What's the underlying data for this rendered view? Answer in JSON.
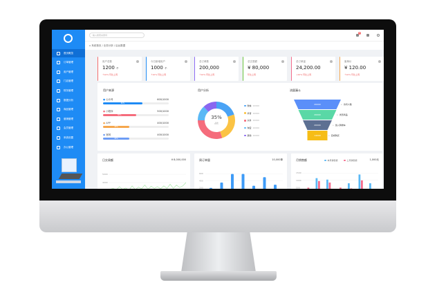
{
  "sidebar": {
    "items": [
      {
        "label": "首页概览",
        "icon": "home-icon"
      },
      {
        "label": "订单管理",
        "icon": "document-icon"
      },
      {
        "label": "用户管理",
        "icon": "user-icon"
      },
      {
        "label": "门店管理",
        "icon": "store-icon"
      },
      {
        "label": "财务管理",
        "icon": "wallet-icon"
      },
      {
        "label": "数据分析",
        "icon": "chart-icon"
      },
      {
        "label": "商品管理",
        "icon": "box-icon"
      },
      {
        "label": "营销管理",
        "icon": "gear-icon"
      },
      {
        "label": "会员管理",
        "icon": "bag-icon"
      },
      {
        "label": "系统设置",
        "icon": "monitor-icon"
      },
      {
        "label": "办公管理",
        "icon": "desktop-icon"
      }
    ],
    "active": 0
  },
  "header": {
    "search_placeholder": "输入搜索关键词",
    "notification_count": "6"
  },
  "breadcrumb": "系统首页 / 业务分析 / 后台数据",
  "stats": [
    {
      "title": "用户总数",
      "value": "1200",
      "unit": "个",
      "sub": "↑10% 环比上周",
      "color": "#f56c6c"
    },
    {
      "title": "今日新增用户",
      "value": "1000",
      "unit": "个",
      "sub": "↑10% 环比上周",
      "color": "#1e8bf5"
    },
    {
      "title": "总订单数",
      "value": "200,000",
      "unit": "",
      "sub": "↑10% 环比上周",
      "color": "#8e6cf5"
    },
    {
      "title": "总交易额",
      "value": "¥ 80,000",
      "unit": "",
      "sub": "环比上周",
      "color": "#67c23a"
    },
    {
      "title": "总订单量",
      "value": "24,200.00",
      "unit": "",
      "sub": "↓20% 环比上周",
      "color": "#f56c8c"
    },
    {
      "title": "客单价",
      "value": "¥ 120.00",
      "unit": "",
      "sub": "↑10% 环比上周",
      "color": "#f5a64c"
    }
  ],
  "progress": {
    "title": "用户来源",
    "items": [
      {
        "label": "公众号",
        "value": "600/1000",
        "pct": 60,
        "color": "#1e8bf5"
      },
      {
        "label": "小程序",
        "value": "500/1000",
        "pct": 50,
        "color": "#f56c7c"
      },
      {
        "label": "APP",
        "value": "400/1000",
        "pct": 40,
        "color": "#f5a64c"
      },
      {
        "label": "官网",
        "value": "400/1000",
        "pct": 40,
        "color": "#6c9cf5"
      }
    ]
  },
  "donut": {
    "title": "用户分析",
    "center": "35%",
    "center_sub": "占比",
    "items": [
      {
        "label": "微信",
        "value": "10000",
        "color": "#4aa3f5",
        "share": 20
      },
      {
        "label": "抖音",
        "value": "10000",
        "color": "#fbc344",
        "share": 25
      },
      {
        "label": "头条",
        "value": "10000",
        "color": "#f56c7c",
        "share": 30
      },
      {
        "label": "淘宝",
        "value": "10000",
        "color": "#5ab8f5",
        "share": 13
      },
      {
        "label": "其他",
        "value": "10000",
        "color": "#8a67f0",
        "share": 12
      }
    ]
  },
  "funnel": {
    "title": "流量漏斗",
    "items": [
      {
        "value": "20000",
        "label": "访问人数",
        "color": "#5b8ff9"
      },
      {
        "value": "20000",
        "label": "浏览商品",
        "color": "#5ad8a6"
      },
      {
        "value": "20000",
        "label": "加入购物车",
        "color": "#5d7092"
      },
      {
        "value": "14000",
        "label": "完成购买",
        "color": "#f6bd16"
      }
    ]
  },
  "chart_data": [
    {
      "type": "line",
      "title": "日交易额",
      "total": "¥ 8,000,000",
      "yticks": [
        "5000",
        "4000",
        "3000"
      ],
      "ylim": [
        2500,
        5500
      ],
      "values": [
        3200,
        3300,
        3150,
        3500,
        3200,
        3350,
        3100,
        3600,
        3150,
        3450,
        3250,
        3700,
        3200,
        3550,
        3300,
        3500,
        3250,
        3600,
        3300,
        3800,
        3300,
        3700,
        3400,
        3600,
        4000
      ],
      "color": "#9be39b"
    },
    {
      "type": "bar",
      "title": "周订单量",
      "total": "10,000单",
      "yticks": [
        "600",
        "400",
        "200"
      ],
      "ylim": [
        0,
        700
      ],
      "values": [
        200,
        350,
        590,
        590,
        260,
        500,
        290
      ],
      "color": "#3e9bf7"
    },
    {
      "type": "bar",
      "title": "月销售额",
      "total": "1,000元",
      "yticks": [
        "1500",
        "1000",
        "500"
      ],
      "ylim": [
        0,
        1700
      ],
      "series": [
        {
          "name": "本月销售额",
          "color": "#5ab8f5",
          "values": [
            0,
            1150,
            1050,
            0,
            800,
            1400,
            800
          ]
        },
        {
          "name": "上月销售额",
          "color": "#f56c8c",
          "values": [
            500,
            950,
            850,
            500,
            450,
            1000,
            150
          ]
        }
      ]
    }
  ]
}
